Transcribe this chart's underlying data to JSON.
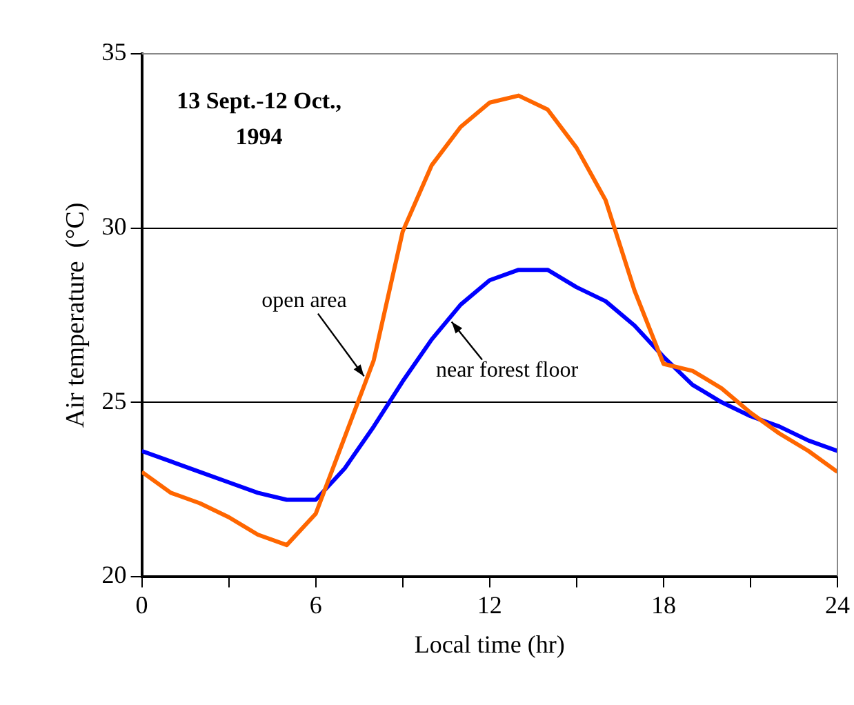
{
  "chart_data": {
    "type": "line",
    "annotations": [
      "13 Sept.-12 Oct., 1994"
    ],
    "xlabel": "Local time (hr)",
    "ylabel": "Air temperature  (°C)",
    "x": [
      0,
      1,
      2,
      3,
      4,
      5,
      6,
      7,
      8,
      9,
      10,
      11,
      12,
      13,
      14,
      15,
      16,
      17,
      18,
      19,
      20,
      21,
      22,
      23,
      24
    ],
    "series": [
      {
        "name": "open area",
        "color": "#ff6600",
        "values": [
          23.0,
          22.4,
          22.1,
          21.7,
          21.2,
          20.9,
          21.8,
          24.0,
          26.2,
          29.9,
          31.8,
          32.9,
          33.6,
          33.8,
          33.4,
          32.3,
          30.8,
          28.2,
          26.1,
          25.9,
          25.4,
          24.7,
          24.1,
          23.6,
          23.0
        ]
      },
      {
        "name": "near forest floor",
        "color": "#0000ff",
        "values": [
          23.6,
          23.3,
          23.0,
          22.7,
          22.4,
          22.2,
          22.2,
          23.1,
          24.3,
          25.6,
          26.8,
          27.8,
          28.5,
          28.8,
          28.8,
          28.3,
          27.9,
          27.2,
          26.3,
          25.5,
          25.0,
          24.6,
          24.3,
          23.9,
          23.6
        ]
      }
    ],
    "xlim": [
      0,
      24
    ],
    "xticks": [
      0,
      {
        "value": 3,
        "label": null
      },
      6,
      {
        "value": 9,
        "label": null
      },
      12,
      {
        "value": 15,
        "label": null
      },
      18,
      {
        "value": 21,
        "label": null
      },
      24
    ],
    "ylim": [
      20,
      35
    ],
    "yticks": [
      20,
      25,
      30,
      35
    ],
    "grid": "y",
    "legend": false,
    "marker": "none",
    "line_style": "solid"
  }
}
